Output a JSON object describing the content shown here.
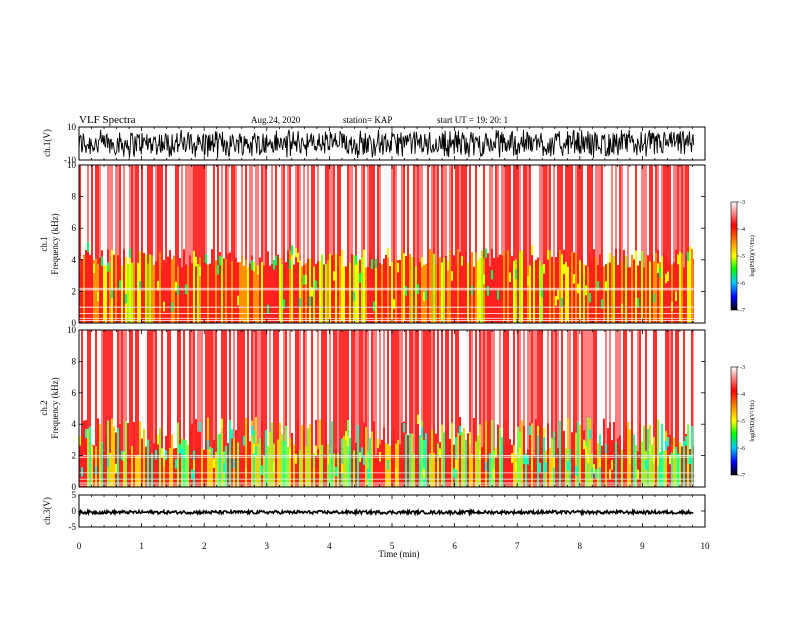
{
  "header": {
    "title": "VLF Spectra",
    "date": "Aug.24, 2020",
    "station": "station= KAP",
    "start_ut": "start  UT =   19: 20: 1"
  },
  "chart_data": [
    {
      "type": "line",
      "name": "ch1-waveform",
      "ylabel": "ch.1(V)",
      "xlim": [
        0,
        10
      ],
      "ylim": [
        -10,
        10
      ],
      "yticks": [
        "10",
        "-10"
      ],
      "description_level": "dense oscillation roughly between -10 and 9 V over 0–9.8 min"
    },
    {
      "type": "heatmap",
      "name": "ch1-spectrogram",
      "ylabel": "ch.1\nFrequency (kHz)",
      "ylim": [
        0,
        10
      ],
      "yticks": [
        "0",
        "2",
        "4",
        "6",
        "8",
        "10"
      ],
      "xlim": [
        0,
        10
      ],
      "colorbar": {
        "label": "log(PSD)(V²/Hz)",
        "range": [
          -7,
          -3
        ],
        "ticks": [
          "-3",
          "-4",
          "-5",
          "-6",
          "-7"
        ]
      }
    },
    {
      "type": "heatmap",
      "name": "ch2-spectrogram",
      "ylabel": "ch.2\nFrequency (kHz)",
      "ylim": [
        0,
        10
      ],
      "yticks": [
        "0",
        "2",
        "4",
        "6",
        "8",
        "10"
      ],
      "xlim": [
        0,
        10
      ],
      "colorbar": {
        "label": "log(PSD)(V²/Hz)",
        "range": [
          -7,
          -3
        ],
        "ticks": [
          "-3",
          "-4",
          "-5",
          "-6",
          "-7"
        ]
      }
    },
    {
      "type": "line",
      "name": "ch3-waveform",
      "ylabel": "ch.3(V)",
      "xlim": [
        0,
        10
      ],
      "ylim": [
        -5,
        5
      ],
      "yticks": [
        "5",
        "0",
        "-5"
      ],
      "description_level": "nearly flat signal around 0 V"
    }
  ],
  "xaxis": {
    "label": "Time (min)",
    "ticks": [
      "0",
      "1",
      "2",
      "3",
      "4",
      "5",
      "6",
      "7",
      "8",
      "9",
      "10"
    ],
    "range": [
      0,
      10
    ],
    "data_end": 9.82
  },
  "colors": {
    "axis": "#000000",
    "spec_high": "#ff0000",
    "spec_mid": "#ffff00",
    "spec_low": "#00ff00",
    "cb_colors": [
      "#ffffff",
      "#ff0000",
      "#ffff00",
      "#00ff00",
      "#00c8ff",
      "#0000ff",
      "#000000"
    ]
  }
}
